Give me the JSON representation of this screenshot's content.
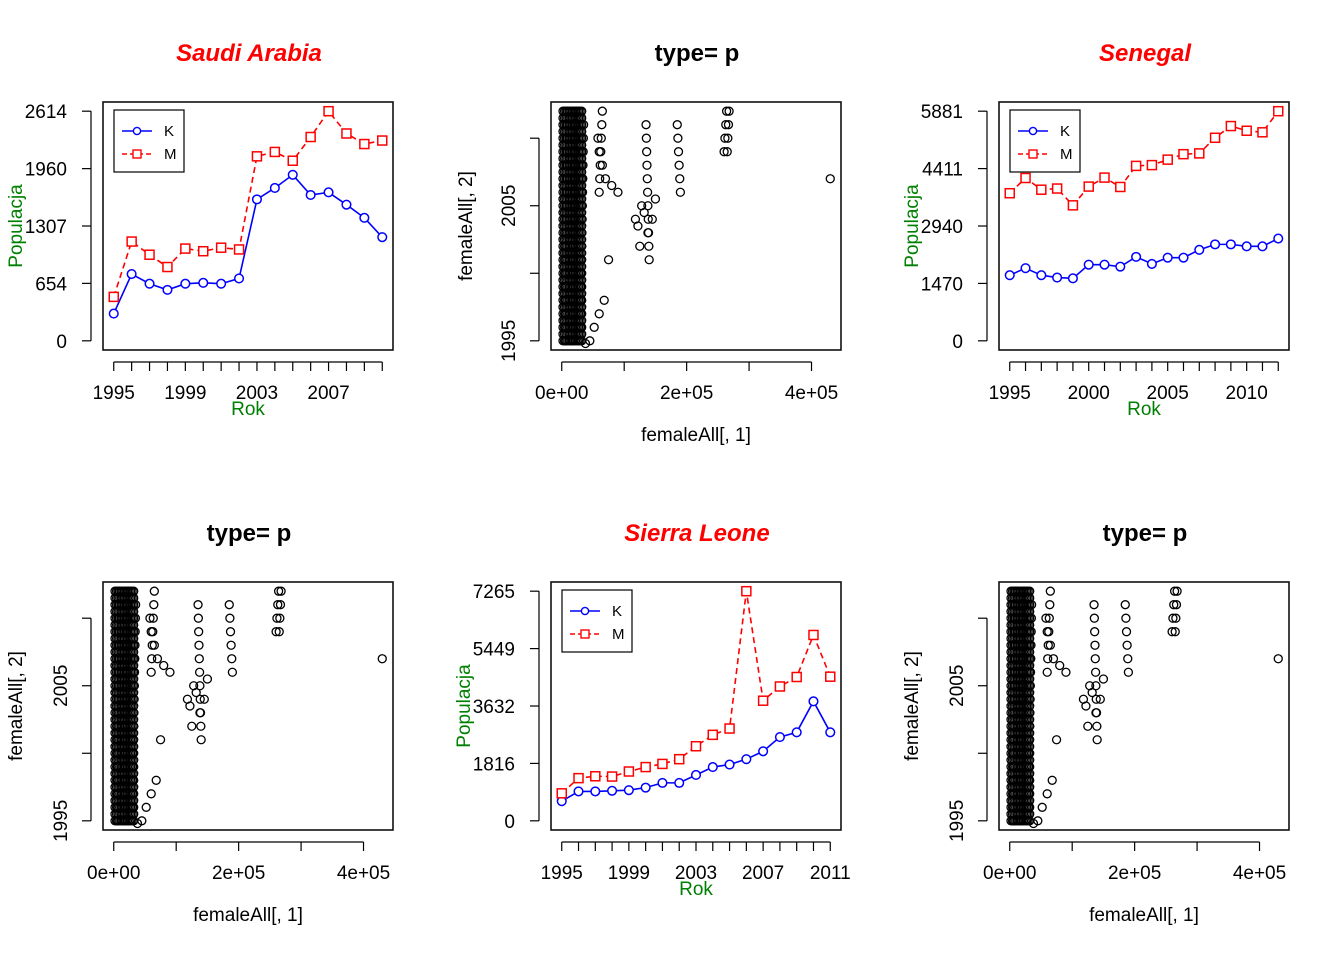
{
  "colors": {
    "female": "#0000ff",
    "male": "#ff0000",
    "title_red": "#ff0000",
    "label_green": "#008000",
    "ink": "#000000"
  },
  "chart_data": [
    {
      "type": "line",
      "title": "Saudi Arabia",
      "xlabel": "Rok",
      "ylabel": "Populacja",
      "x": [
        1995,
        1996,
        1997,
        1998,
        1999,
        2000,
        2001,
        2002,
        2003,
        2004,
        2005,
        2006,
        2007,
        2008,
        2009,
        2010
      ],
      "xlim": [
        1995,
        2010
      ],
      "xticks": [
        1995,
        1996,
        1997,
        1998,
        1999,
        2000,
        2001,
        2002,
        2003,
        2004,
        2005,
        2006,
        2007,
        2008,
        2009,
        2010
      ],
      "xtick_labels": [
        "1995",
        "1999",
        "2003",
        "2007"
      ],
      "ylim": [
        0,
        2614
      ],
      "yticks": [
        0,
        654,
        1307,
        1960,
        2614
      ],
      "legend": "top-left",
      "series": [
        {
          "name": "K",
          "style": "solid",
          "marker": "circle",
          "values": [
            310,
            760,
            650,
            580,
            650,
            660,
            650,
            710,
            1610,
            1740,
            1890,
            1660,
            1690,
            1550,
            1400,
            1180
          ]
        },
        {
          "name": "M",
          "style": "dashed",
          "marker": "square",
          "values": [
            500,
            1130,
            980,
            840,
            1050,
            1020,
            1060,
            1040,
            2100,
            2150,
            2050,
            2320,
            2614,
            2360,
            2240,
            2280
          ]
        }
      ]
    },
    {
      "type": "scatter",
      "title": "type= p",
      "xlabel": "femaleAll[, 1]",
      "ylabel": "femaleAll[, 2]",
      "xlim": [
        0,
        430000
      ],
      "ylim": [
        1995,
        2012
      ],
      "xticks": [
        0,
        100000,
        200000,
        300000,
        400000
      ],
      "xtick_labels": [
        "0e+00",
        "2e+05",
        "4e+05"
      ],
      "xtick_label_values": [
        0,
        200000,
        400000
      ],
      "yticks": [
        1995,
        2000,
        2005,
        2010
      ],
      "ytick_labels": [
        "1995",
        "2005"
      ],
      "ytick_label_values": [
        1995,
        2005
      ],
      "fixed_points": [
        [
          430000,
          2007
        ],
        [
          125000,
          2002
        ],
        [
          75000,
          2001
        ],
        [
          68000,
          1998
        ],
        [
          60000,
          1997
        ],
        [
          52000,
          1996
        ],
        [
          45000,
          1995
        ],
        [
          38000,
          1994.8
        ]
      ],
      "column_x": [
        [
          5000,
          9000
        ],
        [
          17000,
          22000
        ],
        [
          30000,
          35000
        ],
        [
          60000,
          65000
        ],
        [
          140000,
          135000
        ],
        [
          190000,
          185000
        ],
        [
          260000,
          264000
        ],
        [
          265000,
          268000
        ]
      ],
      "column_years": [
        [
          1995,
          2012
        ],
        [
          1995,
          2012
        ],
        [
          1996,
          2011
        ],
        [
          2006,
          2012
        ],
        [
          2001,
          2011
        ],
        [
          2006,
          2011
        ],
        [
          2009,
          2012
        ],
        [
          2009,
          2012
        ]
      ]
    },
    {
      "type": "line",
      "title": "Senegal",
      "xlabel": "Rok",
      "ylabel": "Populacja",
      "x": [
        1995,
        1996,
        1997,
        1998,
        1999,
        2000,
        2001,
        2002,
        2003,
        2004,
        2005,
        2006,
        2007,
        2008,
        2009,
        2010,
        2011,
        2012
      ],
      "xlim": [
        1995,
        2012
      ],
      "xticks": [
        1995,
        1996,
        1997,
        1998,
        1999,
        2000,
        2001,
        2002,
        2003,
        2004,
        2005,
        2006,
        2007,
        2008,
        2009,
        2010,
        2011,
        2012
      ],
      "xtick_labels": [
        "1995",
        "2000",
        "2005",
        "2010"
      ],
      "ylim": [
        0,
        5881
      ],
      "yticks": [
        0,
        1470,
        2940,
        4411,
        5881
      ],
      "legend": "top-left",
      "series": [
        {
          "name": "K",
          "style": "solid",
          "marker": "circle",
          "values": [
            1680,
            1860,
            1680,
            1620,
            1600,
            1950,
            1950,
            1900,
            2150,
            1970,
            2130,
            2130,
            2330,
            2470,
            2470,
            2420,
            2420,
            2620
          ]
        },
        {
          "name": "M",
          "style": "dashed",
          "marker": "square",
          "values": [
            3780,
            4170,
            3870,
            3900,
            3470,
            3950,
            4180,
            3940,
            4480,
            4500,
            4640,
            4780,
            4800,
            5200,
            5500,
            5380,
            5340,
            5881
          ]
        }
      ]
    },
    {
      "type": "scatter",
      "title": "type= p",
      "xlabel": "femaleAll[, 1]",
      "ylabel": "femaleAll[, 2]",
      "xlim": [
        0,
        430000
      ],
      "ylim": [
        1995,
        2012
      ],
      "xticks": [
        0,
        100000,
        200000,
        300000,
        400000
      ],
      "xtick_labels": [
        "0e+00",
        "2e+05",
        "4e+05"
      ],
      "xtick_label_values": [
        0,
        200000,
        400000
      ],
      "yticks": [
        1995,
        2000,
        2005,
        2010
      ],
      "ytick_labels": [
        "1995",
        "2005"
      ],
      "ytick_label_values": [
        1995,
        2005
      ],
      "fixed_points": [
        [
          430000,
          2007
        ],
        [
          125000,
          2002
        ],
        [
          75000,
          2001
        ],
        [
          68000,
          1998
        ],
        [
          60000,
          1997
        ],
        [
          52000,
          1996
        ],
        [
          45000,
          1995
        ],
        [
          38000,
          1994.8
        ]
      ],
      "column_x": [
        [
          5000,
          9000
        ],
        [
          17000,
          22000
        ],
        [
          30000,
          35000
        ],
        [
          60000,
          65000
        ],
        [
          140000,
          135000
        ],
        [
          190000,
          185000
        ],
        [
          260000,
          264000
        ],
        [
          265000,
          268000
        ]
      ],
      "column_years": [
        [
          1995,
          2012
        ],
        [
          1995,
          2012
        ],
        [
          1996,
          2011
        ],
        [
          2006,
          2012
        ],
        [
          2001,
          2011
        ],
        [
          2006,
          2011
        ],
        [
          2009,
          2012
        ],
        [
          2009,
          2012
        ]
      ]
    },
    {
      "type": "line",
      "title": "Sierra Leone",
      "xlabel": "Rok",
      "ylabel": "Populacja",
      "x": [
        1995,
        1996,
        1997,
        1998,
        1999,
        2000,
        2001,
        2002,
        2003,
        2004,
        2005,
        2006,
        2007,
        2008,
        2009,
        2010,
        2011
      ],
      "xlim": [
        1995,
        2011
      ],
      "xticks": [
        1995,
        1996,
        1997,
        1998,
        1999,
        2000,
        2001,
        2002,
        2003,
        2004,
        2005,
        2006,
        2007,
        2008,
        2009,
        2010,
        2011
      ],
      "xtick_labels": [
        "1995",
        "1999",
        "2003",
        "2007",
        "2011"
      ],
      "ylim": [
        0,
        7265
      ],
      "yticks": [
        0,
        1816,
        3632,
        5449,
        7265
      ],
      "legend": "top-left",
      "series": [
        {
          "name": "K",
          "style": "solid",
          "marker": "circle",
          "values": [
            620,
            930,
            930,
            950,
            970,
            1050,
            1200,
            1200,
            1450,
            1700,
            1780,
            1950,
            2200,
            2650,
            2800,
            3780,
            2800
          ]
        },
        {
          "name": "M",
          "style": "dashed",
          "marker": "square",
          "values": [
            870,
            1350,
            1410,
            1400,
            1560,
            1700,
            1800,
            1950,
            2360,
            2720,
            2920,
            7265,
            3800,
            4250,
            4550,
            5880,
            4560
          ]
        }
      ]
    },
    {
      "type": "scatter",
      "title": "type= p",
      "xlabel": "femaleAll[, 1]",
      "ylabel": "femaleAll[, 2]",
      "xlim": [
        0,
        430000
      ],
      "ylim": [
        1995,
        2012
      ],
      "xticks": [
        0,
        100000,
        200000,
        300000,
        400000
      ],
      "xtick_labels": [
        "0e+00",
        "2e+05",
        "4e+05"
      ],
      "xtick_label_values": [
        0,
        200000,
        400000
      ],
      "yticks": [
        1995,
        2000,
        2005,
        2010
      ],
      "ytick_labels": [
        "1995",
        "2005"
      ],
      "ytick_label_values": [
        1995,
        2005
      ],
      "fixed_points": [
        [
          430000,
          2007
        ],
        [
          125000,
          2002
        ],
        [
          75000,
          2001
        ],
        [
          68000,
          1998
        ],
        [
          60000,
          1997
        ],
        [
          52000,
          1996
        ],
        [
          45000,
          1995
        ],
        [
          38000,
          1994.8
        ]
      ],
      "column_x": [
        [
          5000,
          9000
        ],
        [
          17000,
          22000
        ],
        [
          30000,
          35000
        ],
        [
          60000,
          65000
        ],
        [
          140000,
          135000
        ],
        [
          190000,
          185000
        ],
        [
          260000,
          264000
        ],
        [
          265000,
          268000
        ]
      ],
      "column_years": [
        [
          1995,
          2012
        ],
        [
          1995,
          2012
        ],
        [
          1996,
          2011
        ],
        [
          2006,
          2012
        ],
        [
          2001,
          2011
        ],
        [
          2006,
          2011
        ],
        [
          2009,
          2012
        ],
        [
          2009,
          2012
        ]
      ]
    }
  ]
}
